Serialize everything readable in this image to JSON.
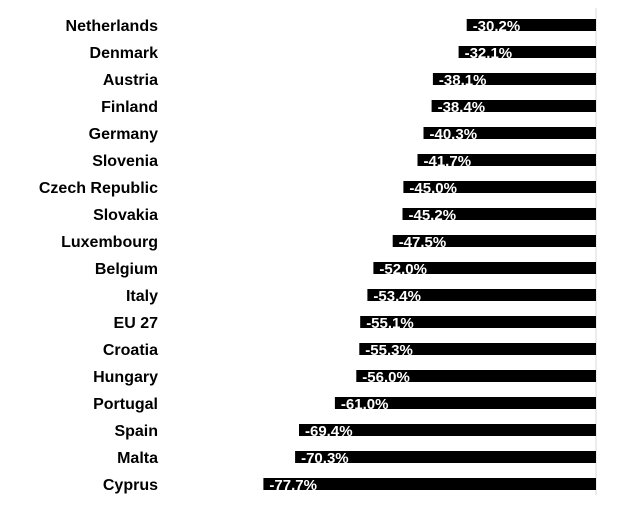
{
  "chart_data": {
    "type": "bar",
    "orientation": "horizontal",
    "categories": [
      "Netherlands",
      "Denmark",
      "Austria",
      "Finland",
      "Germany",
      "Slovenia",
      "Czech Republic",
      "Slovakia",
      "Luxembourg",
      "Belgium",
      "Italy",
      "EU 27",
      "Croatia",
      "Hungary",
      "Portugal",
      "Spain",
      "Malta",
      "Cyprus"
    ],
    "values": [
      -30.2,
      -32.1,
      -38.1,
      -38.4,
      -40.3,
      -41.7,
      -45.0,
      -45.2,
      -47.5,
      -52.0,
      -53.4,
      -55.1,
      -55.3,
      -56.0,
      -61.0,
      -69.4,
      -70.3,
      -77.7
    ],
    "data_labels": [
      "-30.2%",
      "-32.1%",
      "-38.1%",
      "-38.4%",
      "-40.3%",
      "-41.7%",
      "-45.0%",
      "-45.2%",
      "-47.5%",
      "-52.0%",
      "-53.4%",
      "-55.1%",
      "-55.3%",
      "-56.0%",
      "-61.0%",
      "-69.4%",
      "-70.3%",
      "-77.7%"
    ],
    "unit": "%",
    "xlim": [
      -100,
      0
    ],
    "bar_color": "#000000",
    "label_color": "#ffffff",
    "axis_line_color": "#d9d9d9",
    "grid": false,
    "legend": "none"
  }
}
